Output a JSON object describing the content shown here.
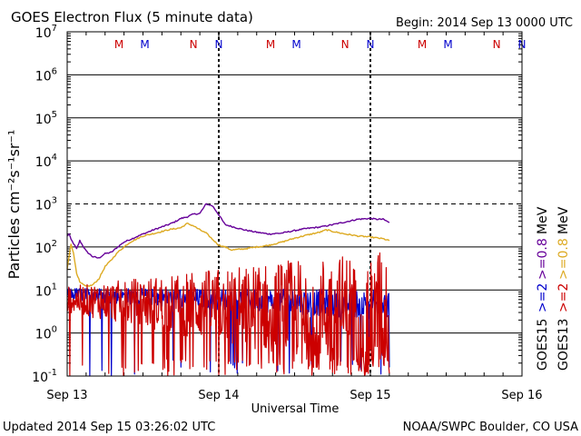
{
  "chart_data": {
    "type": "line",
    "title": "GOES Electron Flux (5 minute data)",
    "begin_label": "Begin: 2014 Sep 13 0000 UTC",
    "xlabel": "Universal Time",
    "ylabel": "Particles cm⁻²s⁻¹sr⁻¹",
    "y_scale": "log",
    "ylim": [
      0.1,
      10000000
    ],
    "xlim": [
      0,
      72
    ],
    "x_ticks": [
      {
        "x": 0,
        "label": "Sep 13"
      },
      {
        "x": 24,
        "label": "Sep 14"
      },
      {
        "x": 48,
        "label": "Sep 15"
      },
      {
        "x": 72,
        "label": "Sep 16"
      }
    ],
    "y_ticks": [
      {
        "base": "10",
        "exp": "-1",
        "v": 0.1
      },
      {
        "base": "10",
        "exp": "0",
        "v": 1
      },
      {
        "base": "10",
        "exp": "1",
        "v": 10
      },
      {
        "base": "10",
        "exp": "2",
        "v": 100
      },
      {
        "base": "10",
        "exp": "3",
        "v": 1000
      },
      {
        "base": "10",
        "exp": "4",
        "v": 10000
      },
      {
        "base": "10",
        "exp": "5",
        "v": 100000
      },
      {
        "base": "10",
        "exp": "6",
        "v": 1000000
      },
      {
        "base": "10",
        "exp": "7",
        "v": 10000000
      }
    ],
    "threshold": 1000,
    "day_boundaries": [
      24,
      48
    ],
    "top_markers": [
      {
        "x": 8.2,
        "label": "M",
        "color": "#cc0000"
      },
      {
        "x": 12.3,
        "label": "M",
        "color": "#0000cc"
      },
      {
        "x": 20.0,
        "label": "N",
        "color": "#cc0000"
      },
      {
        "x": 24.0,
        "label": "N",
        "color": "#0000cc"
      },
      {
        "x": 32.2,
        "label": "M",
        "color": "#cc0000"
      },
      {
        "x": 36.3,
        "label": "M",
        "color": "#0000cc"
      },
      {
        "x": 44.0,
        "label": "N",
        "color": "#cc0000"
      },
      {
        "x": 48.0,
        "label": "N",
        "color": "#0000cc"
      },
      {
        "x": 56.2,
        "label": "M",
        "color": "#cc0000"
      },
      {
        "x": 60.3,
        "label": "M",
        "color": "#0000cc"
      },
      {
        "x": 68.0,
        "label": "N",
        "color": "#cc0000"
      },
      {
        "x": 72.0,
        "label": "N",
        "color": "#0000cc"
      }
    ],
    "legend": {
      "rows": [
        {
          "prefix": "GOES15",
          "items": [
            {
              "label": ">=2",
              "color": "#0000cc"
            },
            {
              "label": ">=0.8",
              "color": "#660099"
            }
          ]
        },
        {
          "prefix": "GOES13",
          "items": [
            {
              "label": ">=2",
              "color": "#cc0000"
            },
            {
              "label": ">=0.8",
              "color": "#ddaa22"
            }
          ]
        }
      ],
      "unit": "MeV"
    },
    "series": [
      {
        "name": "GOES15 >=0.8 MeV",
        "color": "#660099",
        "kind": "smooth",
        "x": [
          0,
          0.3,
          0.6,
          1.0,
          1.5,
          2.0,
          3.0,
          4.0,
          5.0,
          6.0,
          7.0,
          8.0,
          9.0,
          10.0,
          12.0,
          14.0,
          16.0,
          17.0,
          18.0,
          19.0,
          20.0,
          21.0,
          22.0,
          23.0,
          24.0,
          25.0,
          26.0,
          28.0,
          30.0,
          32.0,
          34.0,
          36.0,
          38.0,
          40.0,
          42.0,
          44.0,
          46.0,
          48.0,
          49.0,
          50.0,
          51.0
        ],
        "y": [
          180,
          200,
          150,
          120,
          90,
          140,
          80,
          60,
          55,
          70,
          75,
          100,
          130,
          150,
          200,
          260,
          330,
          380,
          460,
          500,
          580,
          600,
          1000,
          900,
          560,
          330,
          300,
          250,
          220,
          200,
          210,
          240,
          270,
          290,
          330,
          380,
          440,
          460,
          440,
          440,
          370
        ]
      },
      {
        "name": "GOES13 >=0.8 MeV",
        "color": "#ddaa22",
        "kind": "smooth",
        "x": [
          0,
          0.3,
          0.6,
          1.0,
          1.5,
          2.0,
          3.0,
          4.0,
          5.0,
          6.0,
          7.0,
          8.0,
          9.0,
          10.0,
          12.0,
          14.0,
          16.0,
          18.0,
          19.0,
          20.0,
          21.0,
          22.0,
          23.0,
          24.0,
          25.0,
          26.0,
          28.0,
          30.0,
          32.0,
          34.0,
          36.0,
          38.0,
          40.0,
          41.0,
          42.0,
          44.0,
          46.0,
          48.0,
          50.0,
          51.0
        ],
        "y": [
          30,
          60,
          120,
          70,
          25,
          15,
          12,
          13,
          18,
          35,
          50,
          75,
          100,
          130,
          180,
          210,
          250,
          280,
          350,
          310,
          250,
          210,
          150,
          110,
          100,
          85,
          90,
          100,
          110,
          130,
          160,
          190,
          220,
          250,
          230,
          200,
          180,
          170,
          155,
          140
        ]
      },
      {
        "name": "GOES15 >=2 MeV",
        "color": "#0000cc",
        "kind": "noisy",
        "x": [
          0,
          51
        ],
        "y": [
          8,
          4.5
        ],
        "noise": [
          0.15,
          0.35
        ],
        "drop_rate": 0.03
      },
      {
        "name": "GOES13 >=2 MeV",
        "color": "#cc0000",
        "kind": "noisy",
        "x": [
          0,
          51
        ],
        "y": [
          6,
          3
        ],
        "noise": [
          0.3,
          1.5
        ],
        "drop_rate": 0.12
      }
    ]
  },
  "footer": {
    "updated": "Updated 2014 Sep 15 03:26:02 UTC",
    "source": "NOAA/SWPC Boulder, CO USA"
  }
}
